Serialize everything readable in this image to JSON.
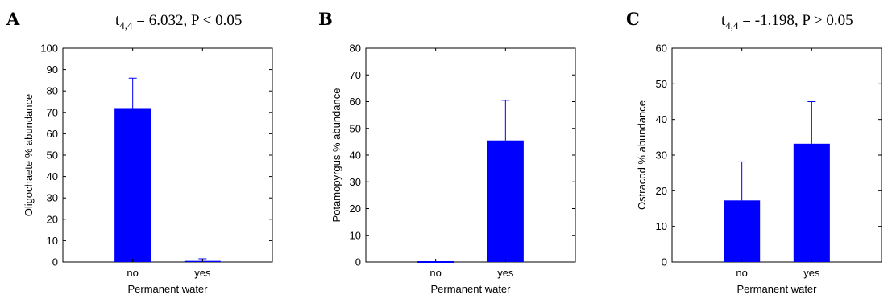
{
  "chart_data": [
    {
      "type": "bar",
      "panel_label": "A",
      "annotation": {
        "prefix": "t",
        "subscript": "4,4",
        "text": " = 6.032, P < 0.05"
      },
      "categories": [
        "no",
        "yes"
      ],
      "values": [
        72,
        0.5
      ],
      "errors": [
        14,
        1
      ],
      "xlabel": "Permanent water",
      "ylabel": "Oligochaete % abundance",
      "ylim": [
        0,
        100
      ],
      "yticks": [
        0,
        10,
        20,
        30,
        40,
        50,
        60,
        70,
        80,
        90,
        100
      ],
      "grid": false,
      "bar_color": "#0000ff"
    },
    {
      "type": "bar",
      "panel_label": "B",
      "annotation": null,
      "categories": [
        "no",
        "yes"
      ],
      "values": [
        0,
        45.5
      ],
      "errors": [
        0,
        15
      ],
      "xlabel": "Permanent water",
      "ylabel": "Potamopyrgus % abundance",
      "ylim": [
        0,
        80
      ],
      "yticks": [
        0,
        10,
        20,
        30,
        40,
        50,
        60,
        70,
        80
      ],
      "grid": false,
      "bar_color": "#0000ff"
    },
    {
      "type": "bar",
      "panel_label": "C",
      "annotation": {
        "prefix": "t",
        "subscript": "4,4",
        "text": " = -1.198, P > 0.05"
      },
      "categories": [
        "no",
        "yes"
      ],
      "values": [
        17.3,
        33.2
      ],
      "errors": [
        10.8,
        11.8
      ],
      "xlabel": "Permanent water",
      "ylabel": "Ostracod % abundance",
      "ylim": [
        0,
        60
      ],
      "yticks": [
        0,
        10,
        20,
        30,
        40,
        50,
        60
      ],
      "grid": false,
      "bar_color": "#0000ff"
    }
  ]
}
